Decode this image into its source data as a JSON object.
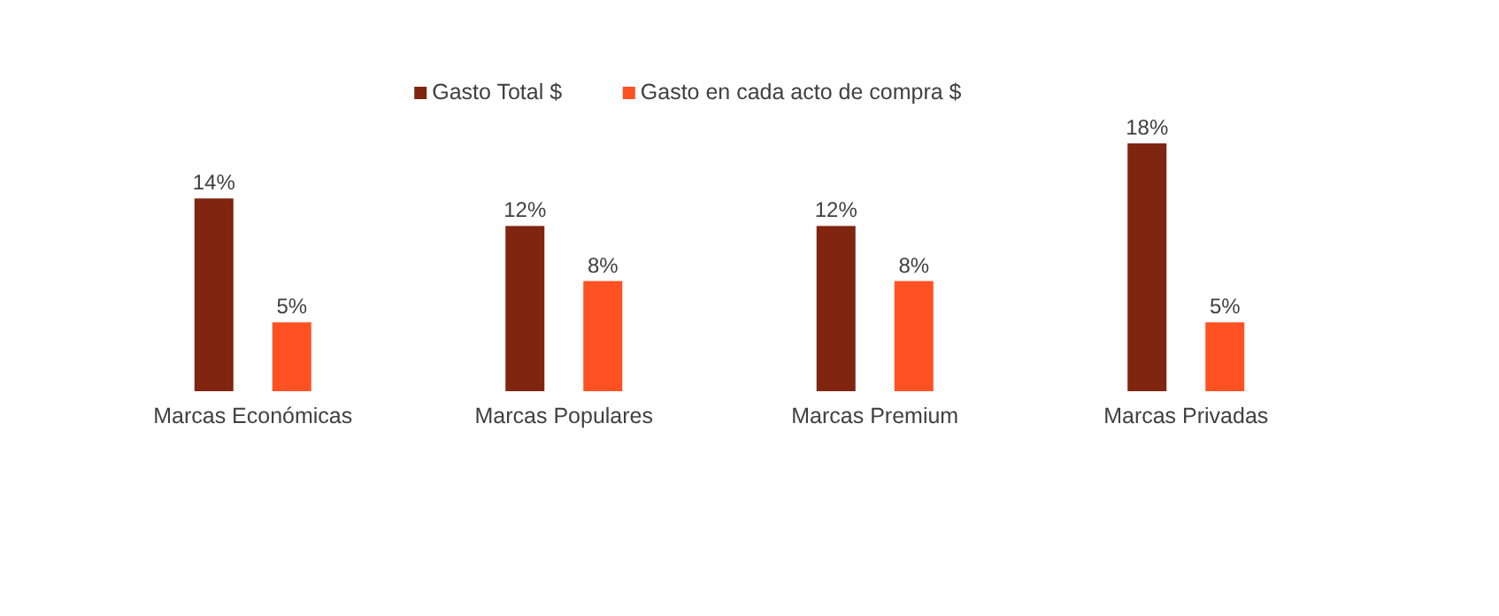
{
  "chart_data": {
    "type": "bar",
    "categories": [
      "Marcas Económicas",
      "Marcas Populares",
      "Marcas Premium",
      "Marcas Privadas"
    ],
    "series": [
      {
        "name": "Gasto Total $",
        "color": "#7f2510",
        "values": [
          14,
          12,
          12,
          18
        ],
        "value_labels": [
          "14%",
          "12%",
          "12%",
          "18%"
        ]
      },
      {
        "name": "Gasto en cada acto de compra $",
        "color": "#ff5121",
        "values": [
          5,
          8,
          8,
          5
        ],
        "value_labels": [
          "5%",
          "8%",
          "8%",
          "5%"
        ]
      }
    ],
    "legend": "top"
  }
}
